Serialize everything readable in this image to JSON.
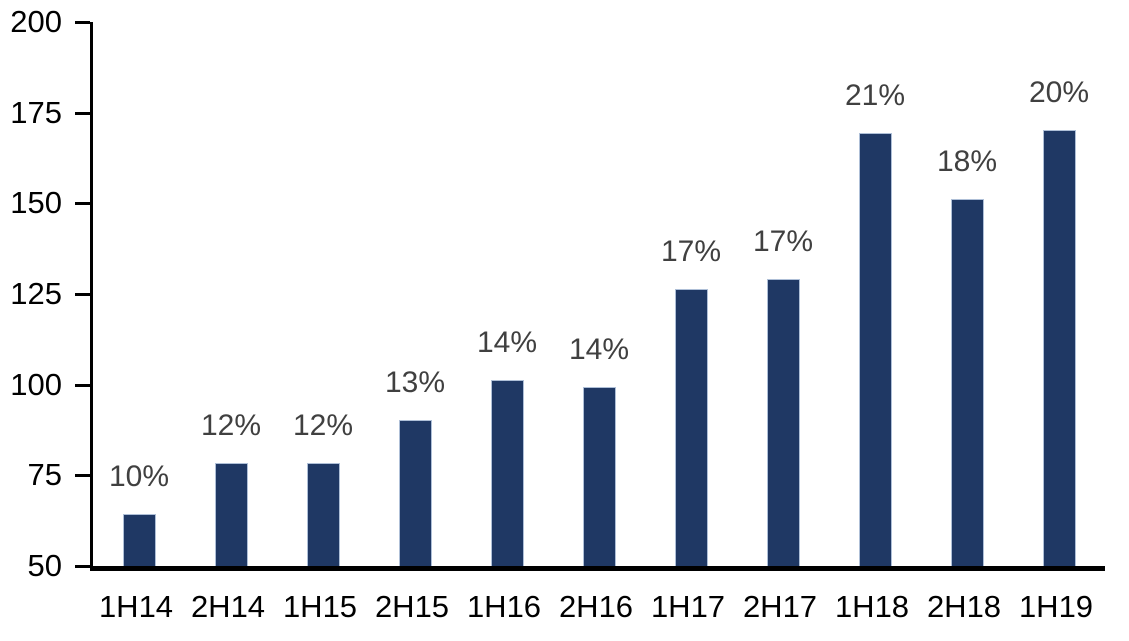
{
  "chart_data": {
    "type": "bar",
    "title": "",
    "xlabel": "",
    "ylabel": "",
    "categories": [
      "1H14",
      "2H14",
      "1H15",
      "2H15",
      "1H16",
      "2H16",
      "1H17",
      "2H17",
      "1H18",
      "2H18",
      "1H19"
    ],
    "values": [
      64,
      78,
      78,
      90,
      101,
      99,
      126,
      129,
      169,
      151,
      170
    ],
    "bar_labels": [
      "10%",
      "12%",
      "12%",
      "13%",
      "14%",
      "14%",
      "17%",
      "17%",
      "21%",
      "18%",
      "20%"
    ],
    "ylim": [
      50,
      200
    ],
    "yticks": [
      50,
      75,
      100,
      125,
      150,
      175,
      200
    ],
    "grid": false,
    "legend_position": "none",
    "colors": {
      "bar_fill": "#1F3864",
      "bar_border": "#AEBFD7",
      "data_label": "#404040",
      "axis_line": "#000000",
      "tick_label": "#000000",
      "background": "#FFFFFF"
    }
  }
}
